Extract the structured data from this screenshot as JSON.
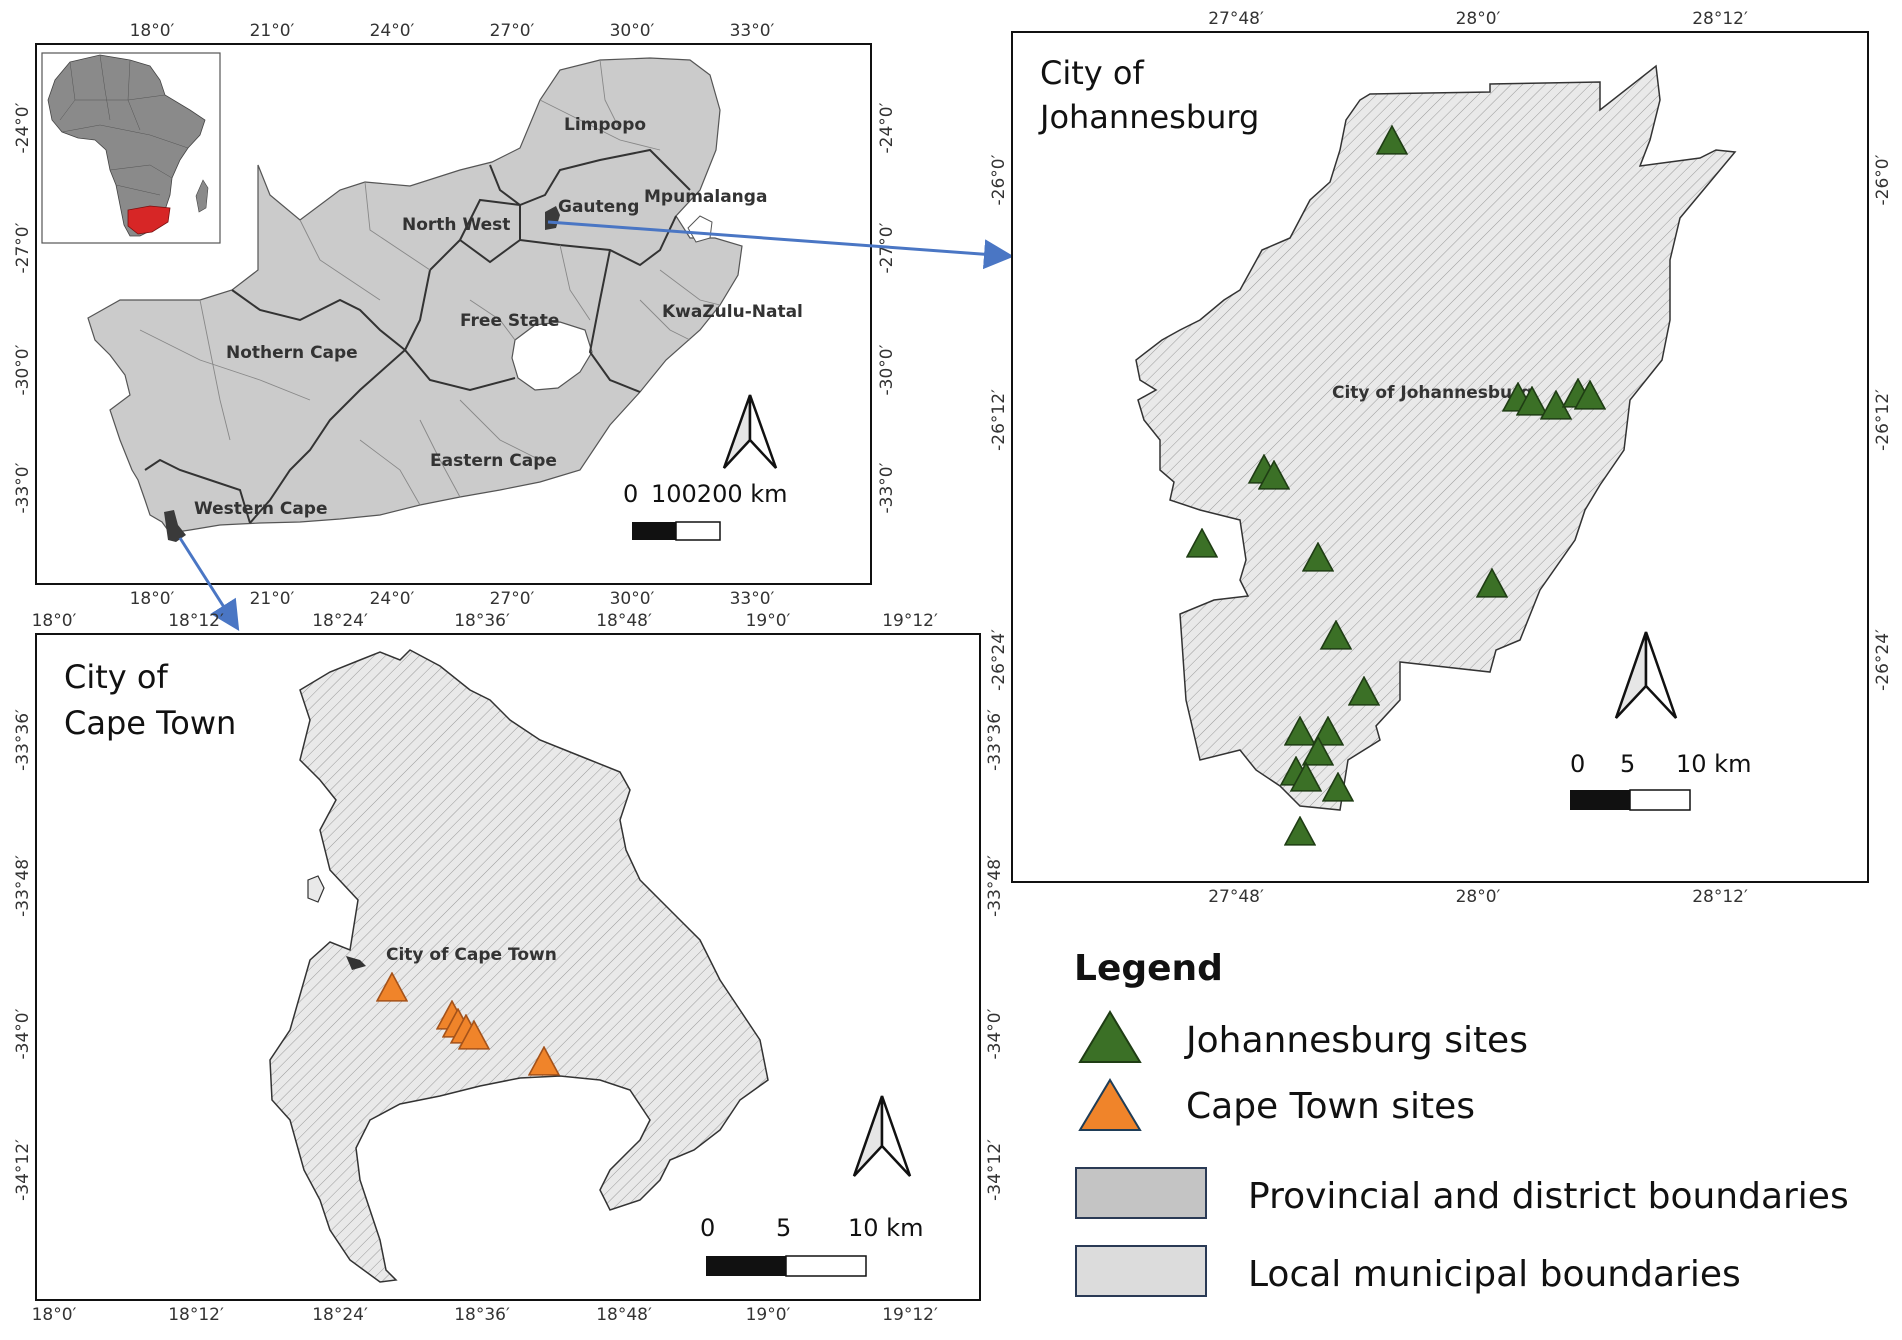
{
  "colors": {
    "jhb_site": "#3b7026",
    "cpt_site": "#f0842a",
    "province_fill": "#c9c9c9",
    "municipal_fill": "#e6e6e6",
    "highlight": "#d72626",
    "arrow": "#4a76c4"
  },
  "main_map": {
    "top_labels": [
      "18°0′",
      "21°0′",
      "24°0′",
      "27°0′",
      "30°0′",
      "33°0′"
    ],
    "bottom_labels": [
      "18°0′",
      "21°0′",
      "24°0′",
      "27°0′",
      "30°0′",
      "33°0′"
    ],
    "left_labels": [
      "-24°0′",
      "-27°0′",
      "-30°0′",
      "-33°0′"
    ],
    "right_labels": [
      "-24°0′",
      "-27°0′",
      "-30°0′",
      "-33°0′"
    ],
    "provinces": [
      {
        "name": "Limpopo"
      },
      {
        "name": "Mpumalanga"
      },
      {
        "name": "Gauteng"
      },
      {
        "name": "North West"
      },
      {
        "name": "Free State"
      },
      {
        "name": "KwaZulu-Natal"
      },
      {
        "name": "Nothern Cape"
      },
      {
        "name": "Eastern Cape"
      },
      {
        "name": "Western Cape"
      }
    ],
    "scale_labels": [
      "0",
      "100200 km"
    ]
  },
  "jhb_map": {
    "title_line1": "City of",
    "title_line2": "Johannesburg",
    "city_label": "City of Johannesburg",
    "top_labels": [
      "27°48′",
      "28°0′",
      "28°12′"
    ],
    "bottom_labels": [
      "27°48′",
      "28°0′",
      "28°12′"
    ],
    "left_labels": [
      "-26°0′",
      "-26°12′",
      "-26°24′"
    ],
    "right_labels": [
      "-26°0′",
      "-26°12′",
      "-26°24′"
    ],
    "scale_labels": [
      "0",
      "5",
      "10 km"
    ]
  },
  "cpt_map": {
    "title_line1": "City of",
    "title_line2": "Cape Town",
    "city_label": "City of Cape Town",
    "top_labels": [
      "18°0′",
      "18°12′",
      "18°24′",
      "18°36′",
      "18°48′",
      "19°0′",
      "19°12′"
    ],
    "bottom_labels": [
      "18°0′",
      "18°12′",
      "18°24′",
      "18°36′",
      "18°48′",
      "19°0′",
      "19°12′"
    ],
    "left_labels": [
      "-33°36′",
      "-33°48′",
      "-34°0′",
      "-34°12′"
    ],
    "right_labels": [
      "-33°36′",
      "-33°48′",
      "-34°0′",
      "-34°12′"
    ],
    "scale_labels": [
      "0",
      "5",
      "10 km"
    ]
  },
  "legend": {
    "title": "Legend",
    "items": [
      {
        "label": "Johannesburg sites",
        "symbol": "green-triangle"
      },
      {
        "label": "Cape Town sites",
        "symbol": "orange-triangle"
      },
      {
        "label": "Provincial and district boundaries",
        "symbol": "dark-grey-box"
      },
      {
        "label": "Local municipal boundaries",
        "symbol": "light-grey-box"
      }
    ]
  }
}
